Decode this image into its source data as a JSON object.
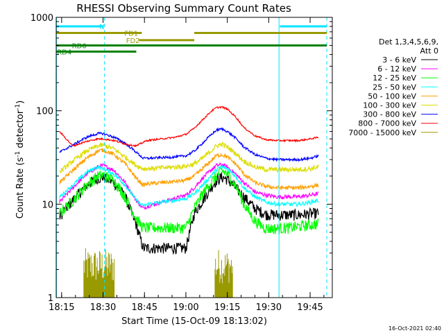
{
  "chart_data": {
    "type": "line",
    "title": "RHESSI Observing Summary Count Rates",
    "xlabel": "Start Time (15-Oct-09 18:13:02)",
    "ylabel_main": "Count Rate (s",
    "ylabel_sup1": "-1",
    "ylabel_mid": " detector",
    "ylabel_sup2": "-1",
    "ylabel_end": ")",
    "x_start": "18:13:02",
    "xlim_minutes": [
      0,
      100
    ],
    "ylim": [
      1,
      1000
    ],
    "y_scale": "log",
    "x_ticks": [
      {
        "label": "18:15",
        "min": 1.97
      },
      {
        "label": "18:30",
        "min": 16.97
      },
      {
        "label": "18:45",
        "min": 31.97
      },
      {
        "label": "19:00",
        "min": 46.97
      },
      {
        "label": "19:15",
        "min": 61.97
      },
      {
        "label": "19:30",
        "min": 76.97
      },
      {
        "label": "19:45",
        "min": 91.97
      }
    ],
    "y_ticks": [
      {
        "label": "1",
        "value": 1
      },
      {
        "label": "10",
        "value": 10
      },
      {
        "label": "100",
        "value": 100
      },
      {
        "label": "1000",
        "value": 1000
      }
    ],
    "legend_title": [
      "Det 1,3,4,5,6,9,",
      "Att 0"
    ],
    "legend_placement": "right",
    "grid": false,
    "x_curve_times": [
      1.2,
      6,
      11,
      15,
      17,
      21,
      25,
      29,
      31.5,
      33,
      38,
      43,
      47,
      50,
      53,
      56,
      58,
      60,
      62,
      65,
      68,
      72,
      76,
      80,
      84,
      88,
      92,
      95
    ],
    "series": [
      {
        "name": "3 - 6 keV",
        "color": "#000000",
        "noise": 0.14,
        "values": [
          7.4,
          11,
          16,
          19,
          19.5,
          17,
          12,
          6,
          3.4,
          3.4,
          3.4,
          3.4,
          3.4,
          8,
          11,
          15,
          18,
          19.5,
          18.5,
          15,
          12,
          9,
          7.8,
          7.7,
          7.7,
          7.7,
          7.9,
          8
        ]
      },
      {
        "name": "6 - 12 keV",
        "color": "#ff00ff",
        "noise": 0.05,
        "values": [
          10.5,
          15,
          21,
          25,
          26,
          23,
          17,
          11,
          9,
          9.5,
          10.5,
          11.5,
          12.5,
          15,
          19,
          23,
          26,
          26.5,
          25,
          21,
          17,
          13.5,
          12.5,
          12,
          12,
          12,
          12.5,
          13
        ]
      },
      {
        "name": "12 - 25 keV",
        "color": "#00ff00",
        "noise": 0.14,
        "values": [
          8,
          11,
          16,
          20,
          20.5,
          18,
          12,
          7,
          5.6,
          5.6,
          5.6,
          5.6,
          5.6,
          9,
          13,
          17,
          20,
          23,
          21,
          16,
          10,
          6.6,
          5.5,
          5.5,
          5.6,
          5.8,
          6,
          6.2
        ]
      },
      {
        "name": "25 - 50 keV",
        "color": "#00ffff",
        "noise": 0.05,
        "values": [
          12,
          16,
          22,
          25,
          24,
          21,
          16,
          11,
          9.5,
          10,
          10.5,
          11,
          11.5,
          13,
          16,
          20,
          23.5,
          25,
          24,
          20,
          15,
          12,
          10.5,
          10,
          10,
          10,
          10.5,
          11
        ]
      },
      {
        "name": "50 - 100 keV",
        "color": "#ffa000",
        "noise": 0.05,
        "values": [
          17,
          23,
          31,
          37,
          38,
          34,
          27,
          19,
          16,
          16.5,
          17,
          17.5,
          18,
          20,
          24,
          29,
          33,
          34,
          32,
          27,
          21,
          17,
          15.5,
          15,
          15,
          15,
          15.5,
          16
        ]
      },
      {
        "name": "100 - 300 keV",
        "color": "#dddd00",
        "noise": 0.06,
        "values": [
          22,
          29,
          37,
          42,
          43,
          39,
          32,
          26,
          24,
          24,
          24.5,
          25,
          25.5,
          27,
          31,
          37,
          42,
          44,
          41,
          35,
          29,
          25,
          23.5,
          23.5,
          23.5,
          23.5,
          24,
          25
        ]
      },
      {
        "name": "300 - 800 keV",
        "color": "#0000ff",
        "noise": 0.03,
        "values": [
          36,
          43,
          52,
          57,
          57,
          52,
          45,
          36,
          31,
          31,
          31.5,
          32,
          33,
          37,
          45,
          55,
          62,
          64,
          60,
          51,
          41,
          34,
          31,
          30,
          30,
          30,
          31,
          33
        ]
      },
      {
        "name": "800 - 7000 keV",
        "color": "#ff0000",
        "noise": 0.02,
        "values": [
          60,
          42,
          47,
          50,
          50,
          48,
          44,
          42,
          46,
          48,
          50,
          52,
          56,
          65,
          80,
          98,
          108,
          110,
          104,
          86,
          66,
          54,
          49,
          48,
          48,
          48,
          50,
          52
        ]
      },
      {
        "name": "7000 - 15000 keV",
        "color": "#999900",
        "noise": 0,
        "values": []
      }
    ],
    "atten_bursts": [
      {
        "start": 10.0,
        "end": 21.0
      },
      {
        "start": 57.5,
        "end": 64.0
      }
    ],
    "atten_level_min": 1.6,
    "flags": [
      {
        "label": "N",
        "color": "#00e5ff",
        "segments": [
          [
            0,
            17
          ],
          [
            81,
            98
          ]
        ],
        "level": 800
      },
      {
        "label": "FD1",
        "color": "#999900",
        "segments": [
          [
            0,
            31
          ],
          [
            50,
            98
          ]
        ],
        "level": 680
      },
      {
        "label": "FD2",
        "color": "#999900",
        "segments": [
          [
            30,
            50
          ]
        ],
        "level": 570
      },
      {
        "label": "RD0",
        "color": "#008000",
        "segments": [
          [
            0,
            98
          ]
        ],
        "level": 500
      },
      {
        "label": "RD4",
        "color": "#008000",
        "segments": [
          [
            0,
            29
          ]
        ],
        "level": 430
      }
    ],
    "vertical_markers": [
      {
        "min": 0.1,
        "style": "solid",
        "color": "#00e5ff"
      },
      {
        "min": 17.5,
        "style": "dashed",
        "color": "#00e5ff"
      },
      {
        "min": 80.7,
        "style": "solid",
        "color": "#00e5ff"
      },
      {
        "min": 98.0,
        "style": "dashed",
        "color": "#00e5ff"
      }
    ]
  },
  "footer": {
    "timestamp": "16-Oct-2021 02:40"
  }
}
